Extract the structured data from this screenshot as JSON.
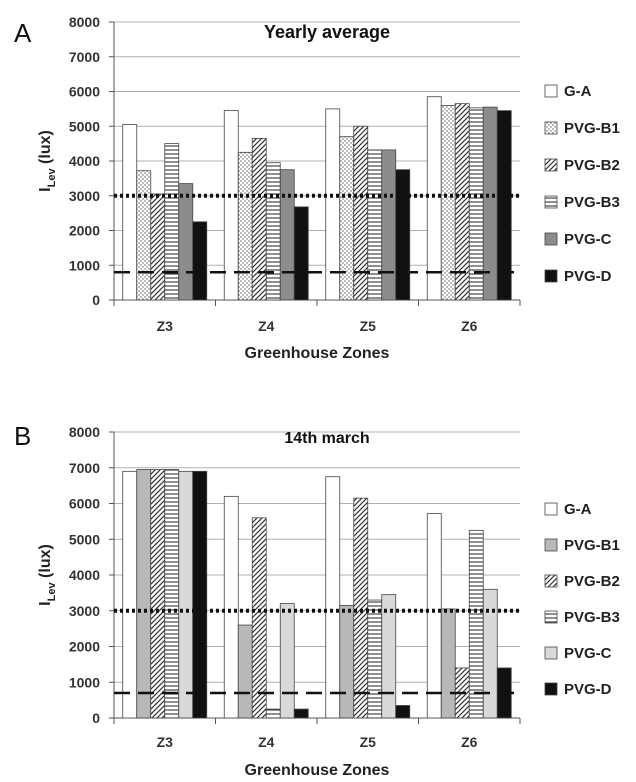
{
  "chart_data": [
    {
      "panel": "A",
      "type": "bar",
      "title": "Yearly average",
      "xlabel": "Greenhouse Zones",
      "ylabel_main": "I",
      "ylabel_sub": "Lev",
      "ylabel_unit": " (lux)",
      "ylim": [
        0,
        8000
      ],
      "yticks": [
        "0",
        "1000",
        "2000",
        "3000",
        "4000",
        "5000",
        "6000",
        "7000",
        "8000"
      ],
      "categories": [
        "Z3",
        "Z4",
        "Z5",
        "Z6"
      ],
      "series": [
        {
          "name": "G-A",
          "fill": "white",
          "values": [
            5050,
            5450,
            5500,
            5850
          ]
        },
        {
          "name": "PVG-B1",
          "fill": "dots",
          "values": [
            3720,
            4250,
            4700,
            5600
          ]
        },
        {
          "name": "PVG-B2",
          "fill": "diag",
          "values": [
            3050,
            4650,
            5000,
            5650
          ]
        },
        {
          "name": "PVG-B3",
          "fill": "hlines",
          "values": [
            4500,
            3950,
            4320,
            5530
          ]
        },
        {
          "name": "PVG-C",
          "fill": "#8c8c8c",
          "values": [
            3350,
            3750,
            4320,
            5550
          ]
        },
        {
          "name": "PVG-D",
          "fill": "#111111",
          "values": [
            2250,
            2680,
            3750,
            5450
          ]
        }
      ],
      "reference_lines": [
        {
          "style": "dotted",
          "value": 3000
        },
        {
          "style": "dashed",
          "value": 800
        }
      ],
      "grid": true,
      "legend_position": "right"
    },
    {
      "panel": "B",
      "type": "bar",
      "title": "14th march",
      "xlabel": "Greenhouse Zones",
      "ylabel_main": "I",
      "ylabel_sub": "Lev",
      "ylabel_unit": " (lux)",
      "ylim": [
        0,
        8000
      ],
      "yticks": [
        "0",
        "1000",
        "2000",
        "3000",
        "4000",
        "5000",
        "6000",
        "7000",
        "8000"
      ],
      "categories": [
        "Z3",
        "Z4",
        "Z5",
        "Z6"
      ],
      "series": [
        {
          "name": "G-A",
          "fill": "white",
          "values": [
            6900,
            6200,
            6750,
            5720
          ]
        },
        {
          "name": "PVG-B1",
          "fill": "#b8b8b8",
          "values": [
            6950,
            2600,
            3150,
            3050
          ]
        },
        {
          "name": "PVG-B2",
          "fill": "diag",
          "values": [
            6950,
            5600,
            6150,
            1400
          ]
        },
        {
          "name": "PVG-B3",
          "fill": "hlines",
          "values": [
            6950,
            250,
            3300,
            5250
          ]
        },
        {
          "name": "PVG-C",
          "fill": "#d9d9d9",
          "values": [
            6900,
            3200,
            3450,
            3600
          ]
        },
        {
          "name": "PVG-D",
          "fill": "#111111",
          "values": [
            6900,
            250,
            350,
            1400
          ]
        }
      ],
      "reference_lines": [
        {
          "style": "dotted",
          "value": 3000
        },
        {
          "style": "dashed",
          "value": 700
        }
      ],
      "grid": true,
      "legend_position": "right"
    }
  ]
}
